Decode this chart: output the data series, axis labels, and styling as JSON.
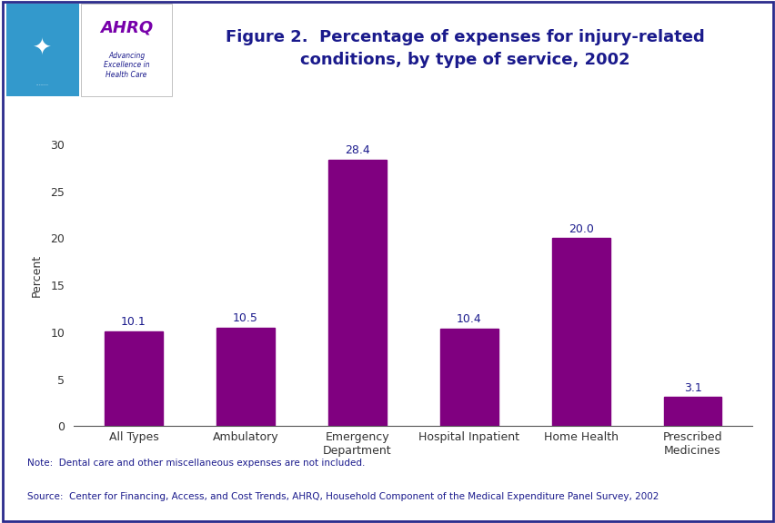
{
  "categories": [
    "All Types",
    "Ambulatory",
    "Emergency\nDepartment",
    "Hospital Inpatient",
    "Home Health",
    "Prescribed\nMedicines"
  ],
  "values": [
    10.1,
    10.5,
    28.4,
    10.4,
    20.0,
    3.1
  ],
  "bar_color_hex": "#800080",
  "title_line1": "Figure 2.  Percentage of expenses for injury-related",
  "title_line2": "conditions, by type of service, 2002",
  "ylabel": "Percent",
  "ylim": [
    0,
    32
  ],
  "yticks": [
    0,
    5,
    10,
    15,
    20,
    25,
    30
  ],
  "note_line1": "Note:  Dental care and other miscellaneous expenses are not included.",
  "note_line2": "Source:  Center for Financing, Access, and Cost Trends, AHRQ, Household Component of the Medical Expenditure Panel Survey, 2002",
  "title_color": "#1a1a8c",
  "label_color": "#1a1a8c",
  "bar_label_fontsize": 9,
  "title_fontsize": 13,
  "ylabel_fontsize": 9,
  "note_fontsize": 7.5,
  "tick_fontsize": 9,
  "background_color": "#ffffff",
  "divider_color": "#2b2b8c",
  "outer_border_color": "#2b2b8c",
  "header_bg": "#f5f5f5",
  "logo_bg": "#3399cc",
  "logo_text_color": "#7700aa",
  "logo_subtext_color": "#1a1a8c"
}
